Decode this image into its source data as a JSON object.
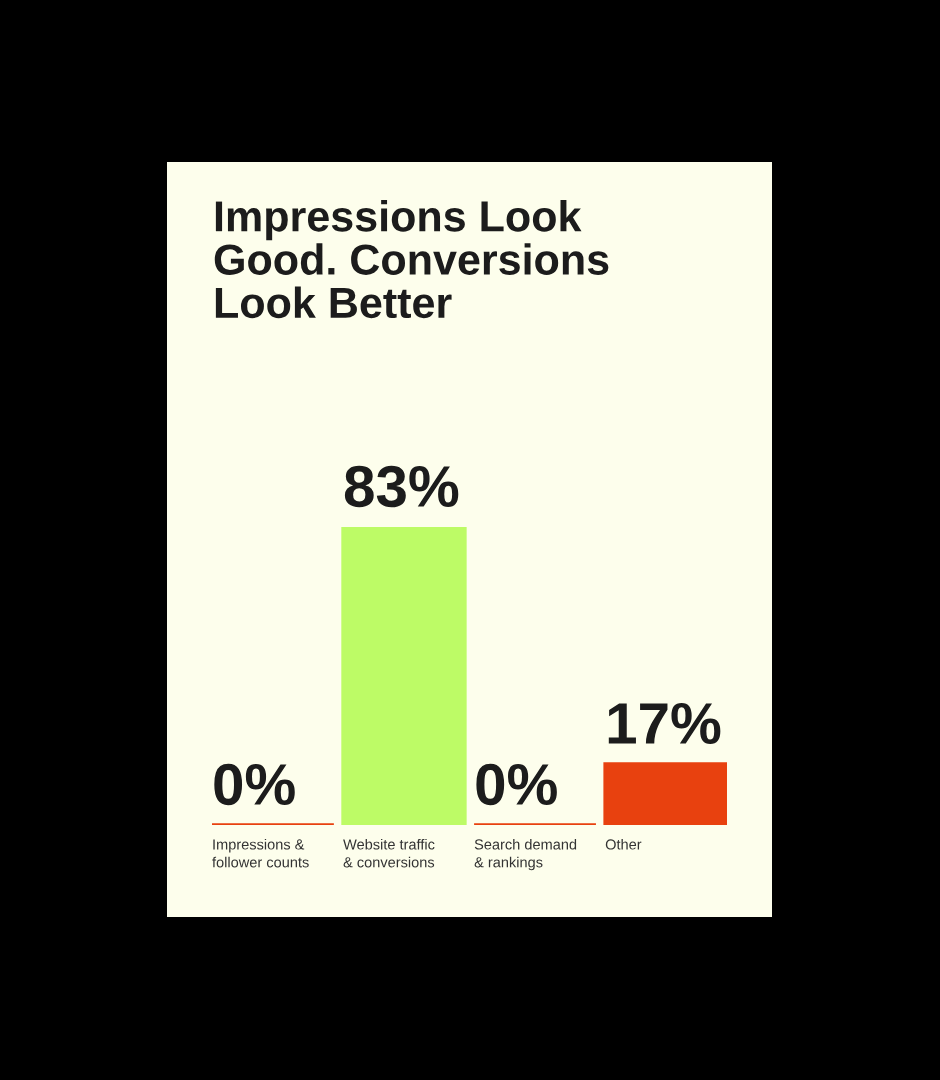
{
  "chart_data": {
    "type": "bar",
    "title": "Impressions Look\nGood. Conversions\nLook Better",
    "categories": [
      "Impressions &\nfollower counts",
      "Website traffic\n& conversions",
      "Search demand\n& rankings",
      "Other"
    ],
    "values": [
      0,
      83,
      0,
      17
    ],
    "colors": [
      "#e8410f",
      "#bdfb66",
      "#e8410f",
      "#e8410f"
    ],
    "value_labels": [
      "0%",
      "83%",
      "0%",
      "17%"
    ],
    "grid": false,
    "legend": false
  }
}
